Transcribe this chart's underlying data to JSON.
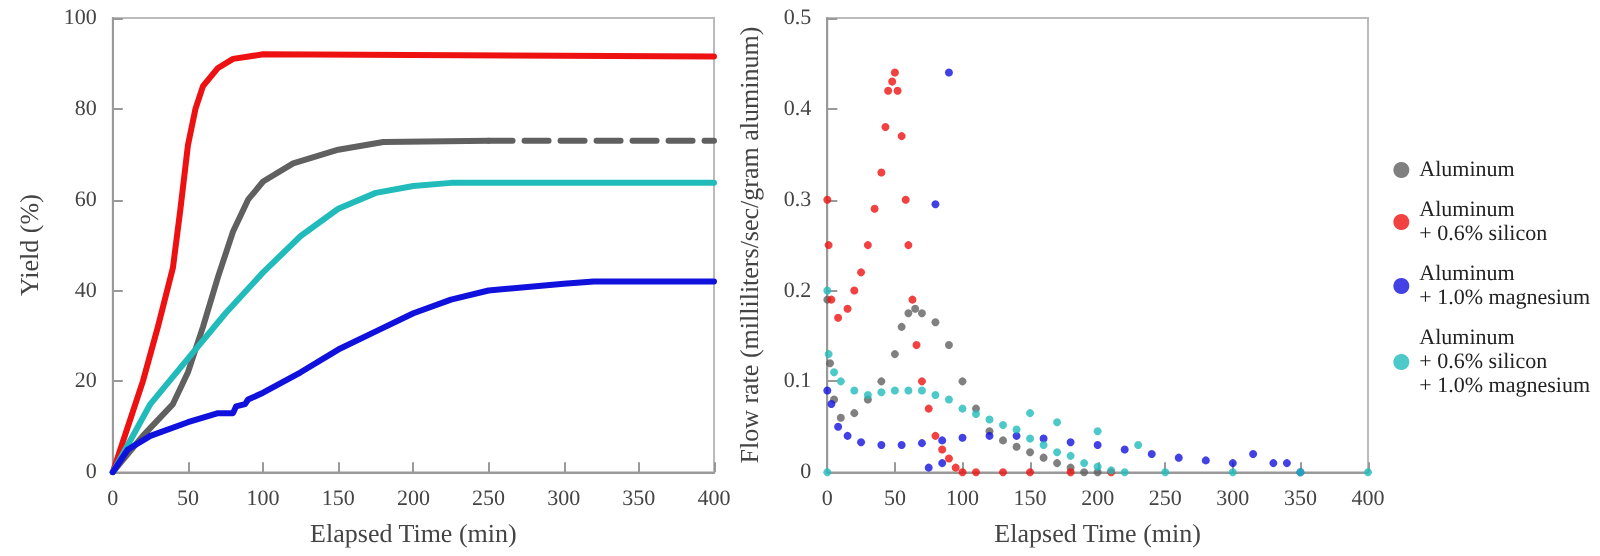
{
  "chart_data": [
    {
      "type": "line",
      "xlabel": "Elapsed Time (min)",
      "ylabel": "Yield (%)",
      "xlim": [
        0,
        400
      ],
      "xticks": [
        0,
        50,
        100,
        150,
        200,
        250,
        300,
        350,
        400
      ],
      "ylim": [
        0,
        100
      ],
      "yticks": [
        0,
        20,
        40,
        60,
        80,
        100
      ],
      "grid": false,
      "legend": false,
      "marker": "none",
      "line_style": "solid",
      "series": [
        {
          "color": "#ee1111",
          "x": [
            0,
            10,
            20,
            30,
            40,
            45,
            50,
            55,
            60,
            70,
            80,
            100,
            400
          ],
          "values": [
            0,
            10,
            20,
            32,
            45,
            58,
            72,
            80,
            85,
            89,
            91,
            92,
            91.5
          ]
        },
        {
          "color": "#606060",
          "x": [
            0,
            20,
            40,
            50,
            60,
            70,
            80,
            90,
            100,
            120,
            150,
            180,
            250
          ],
          "values": [
            0,
            8,
            15,
            22,
            32,
            43,
            53,
            60,
            64,
            68,
            71,
            72.7,
            73
          ]
        },
        {
          "color": "#606060",
          "line_style": "dashed",
          "x": [
            250,
            400
          ],
          "values": [
            73,
            73
          ]
        },
        {
          "color": "#22bbbb",
          "x": [
            0,
            25,
            50,
            75,
            100,
            125,
            150,
            175,
            200,
            225,
            400
          ],
          "values": [
            0,
            15,
            25,
            35,
            44,
            52,
            58,
            61.5,
            63,
            63.7,
            63.7
          ]
        },
        {
          "color": "#1111dd",
          "x": [
            0,
            10,
            25,
            50,
            70,
            80,
            82,
            88,
            90,
            100,
            125,
            150,
            175,
            200,
            225,
            250,
            300,
            320,
            400
          ],
          "values": [
            0,
            5,
            8,
            11,
            13,
            13,
            14.5,
            15,
            16,
            17.5,
            22,
            27,
            31,
            35,
            38,
            40,
            41.5,
            42,
            42
          ]
        }
      ]
    },
    {
      "type": "scatter",
      "xlabel": "Elapsed Time (min)",
      "ylabel": "Flow rate (milliliters/sec/gram aluminum)",
      "xlim": [
        0,
        400
      ],
      "xticks": [
        0,
        50,
        100,
        150,
        200,
        250,
        300,
        350,
        400
      ],
      "ylim": [
        0,
        0.5
      ],
      "yticks": [
        0,
        0.1,
        0.2,
        0.3,
        0.4,
        0.5
      ],
      "grid": false,
      "legend": "right",
      "marker": "circle",
      "series": [
        {
          "name": "Aluminum",
          "color": "#606060",
          "x": [
            0,
            2,
            5,
            10,
            20,
            30,
            40,
            50,
            55,
            60,
            65,
            70,
            80,
            90,
            100,
            110,
            120,
            130,
            140,
            150,
            160,
            170,
            180,
            190,
            200
          ],
          "values": [
            0.19,
            0.12,
            0.08,
            0.06,
            0.065,
            0.08,
            0.1,
            0.13,
            0.16,
            0.175,
            0.18,
            0.175,
            0.165,
            0.14,
            0.1,
            0.07,
            0.045,
            0.035,
            0.028,
            0.022,
            0.016,
            0.01,
            0.005,
            0,
            0
          ]
        },
        {
          "name": "Aluminum\n+ 0.6% silicon",
          "color": "#ee1111",
          "x": [
            0,
            1,
            3,
            8,
            15,
            20,
            25,
            30,
            35,
            40,
            43,
            45,
            48,
            50,
            52,
            55,
            58,
            60,
            63,
            66,
            70,
            75,
            80,
            85,
            90,
            95,
            100,
            110,
            130,
            150,
            180,
            210
          ],
          "values": [
            0.3,
            0.25,
            0.19,
            0.17,
            0.18,
            0.2,
            0.22,
            0.25,
            0.29,
            0.33,
            0.38,
            0.42,
            0.43,
            0.44,
            0.42,
            0.37,
            0.3,
            0.25,
            0.19,
            0.14,
            0.1,
            0.07,
            0.04,
            0.025,
            0.015,
            0.005,
            0,
            0,
            0,
            0,
            0,
            0
          ]
        },
        {
          "name": "Aluminum\n+ 1.0% magnesium",
          "color": "#1111dd",
          "x": [
            0,
            3,
            8,
            15,
            25,
            40,
            55,
            70,
            75,
            80,
            85,
            90,
            85,
            100,
            120,
            140,
            160,
            180,
            200,
            220,
            240,
            260,
            280,
            300,
            315,
            330,
            340,
            350
          ],
          "values": [
            0.09,
            0.075,
            0.05,
            0.04,
            0.033,
            0.03,
            0.03,
            0.032,
            0.005,
            0.295,
            0.01,
            0.44,
            0.035,
            0.038,
            0.04,
            0.04,
            0.037,
            0.033,
            0.03,
            0.025,
            0.02,
            0.016,
            0.013,
            0.01,
            0.02,
            0.01,
            0.01,
            0
          ]
        },
        {
          "name": "Aluminum\n+ 0.6% silicon\n+ 1.0% magnesium",
          "color": "#22bbbb",
          "x": [
            0,
            0,
            1,
            5,
            10,
            20,
            30,
            40,
            50,
            60,
            70,
            80,
            90,
            100,
            110,
            120,
            130,
            140,
            150,
            150,
            160,
            170,
            170,
            180,
            190,
            200,
            200,
            210,
            220,
            230,
            250,
            300,
            350,
            400
          ],
          "values": [
            0,
            0.2,
            0.13,
            0.11,
            0.1,
            0.09,
            0.085,
            0.088,
            0.09,
            0.09,
            0.09,
            0.085,
            0.08,
            0.07,
            0.064,
            0.058,
            0.052,
            0.047,
            0.037,
            0.065,
            0.03,
            0.022,
            0.055,
            0.018,
            0.01,
            0.006,
            0.045,
            0.002,
            0,
            0.03,
            0,
            0,
            0,
            0
          ]
        }
      ]
    }
  ]
}
